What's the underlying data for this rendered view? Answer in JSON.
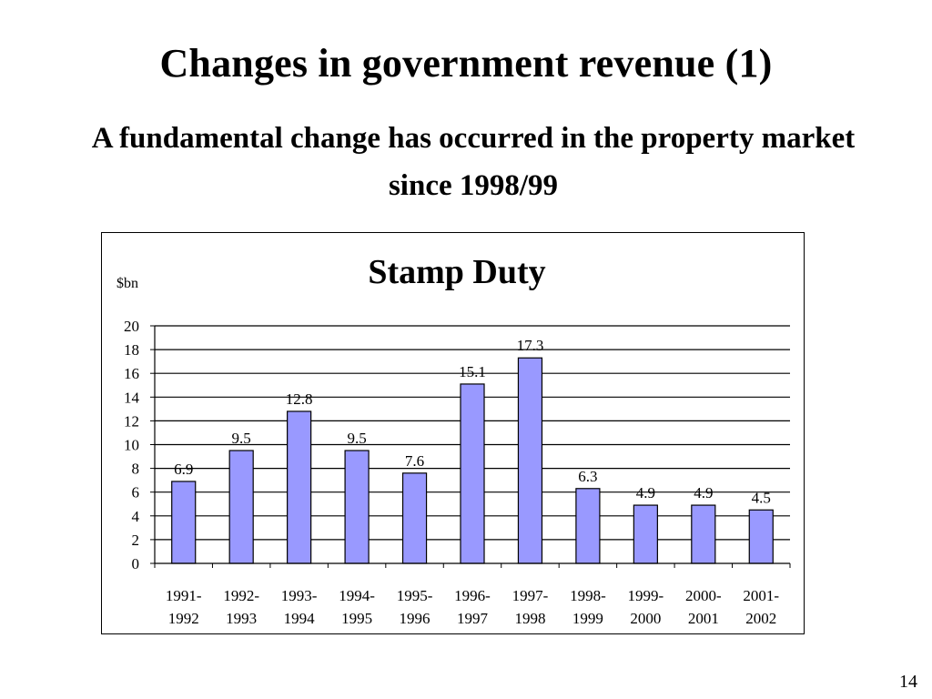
{
  "slide": {
    "title": "Changes in government revenue (1)",
    "subtitle": "A fundamental change has occurred in the property market since 1998/99",
    "page_number": "14"
  },
  "colors": {
    "bar_fill": "#9999ff",
    "bar_stroke": "#000000",
    "grid": "#000000",
    "background": "#ffffff"
  },
  "chart_data": {
    "type": "bar",
    "title": "Stamp Duty",
    "ylabel": "$bn",
    "xlabel": "",
    "ylim": [
      0,
      20
    ],
    "yticks": [
      "0",
      "2",
      "4",
      "6",
      "8",
      "10",
      "12",
      "14",
      "16",
      "18",
      "20"
    ],
    "grid": true,
    "legend": "none",
    "categories": [
      [
        "1991-",
        "1992"
      ],
      [
        "1992-",
        "1993"
      ],
      [
        "1993-",
        "1994"
      ],
      [
        "1994-",
        "1995"
      ],
      [
        "1995-",
        "1996"
      ],
      [
        "1996-",
        "1997"
      ],
      [
        "1997-",
        "1998"
      ],
      [
        "1998-",
        "1999"
      ],
      [
        "1999-",
        "2000"
      ],
      [
        "2000-",
        "2001"
      ],
      [
        "2001-",
        "2002"
      ]
    ],
    "values": [
      6.9,
      9.5,
      12.8,
      9.5,
      7.6,
      15.1,
      17.3,
      6.3,
      4.9,
      4.9,
      4.5
    ],
    "data_labels": [
      "6.9",
      "9.5",
      "12.8",
      "9.5",
      "7.6",
      "15.1",
      "17.3",
      "6.3",
      "4.9",
      "4.9",
      "4.5"
    ]
  }
}
